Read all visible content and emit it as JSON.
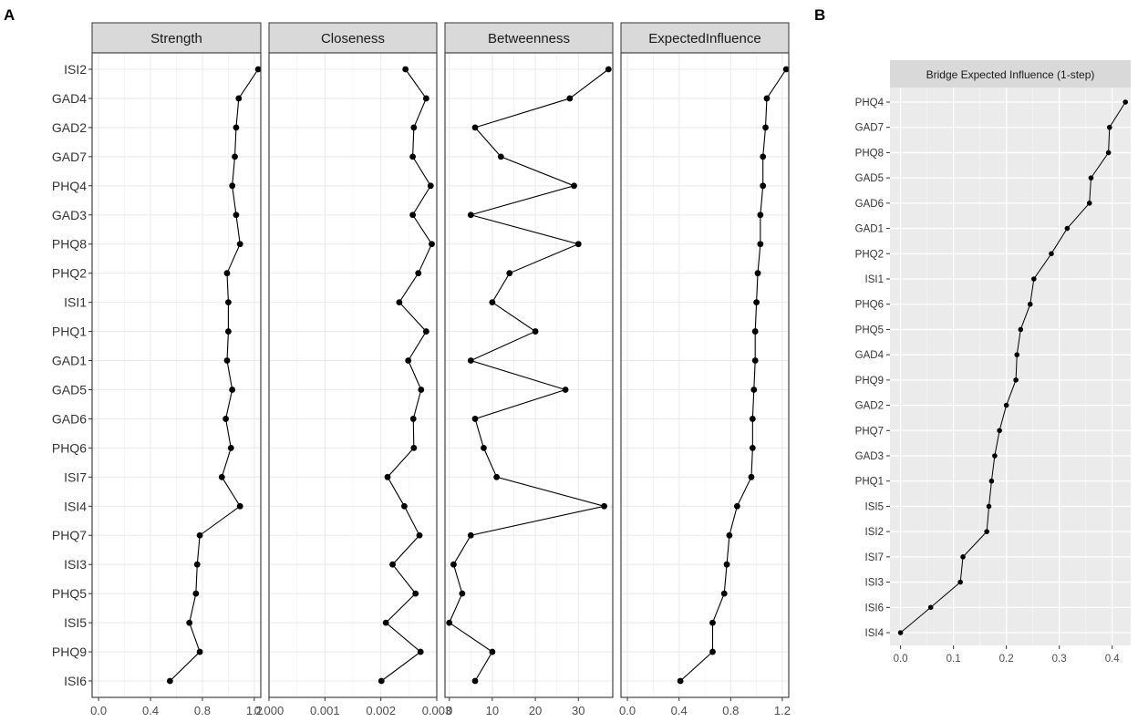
{
  "panel_letters": {
    "a": "A",
    "b": "B"
  },
  "chart_data": [
    {
      "type": "line",
      "panel": "A",
      "categories": [
        "ISI2",
        "GAD4",
        "GAD2",
        "GAD7",
        "PHQ4",
        "GAD3",
        "PHQ8",
        "PHQ2",
        "ISI1",
        "PHQ1",
        "GAD1",
        "GAD5",
        "GAD6",
        "PHQ6",
        "ISI7",
        "ISI4",
        "PHQ7",
        "ISI3",
        "PHQ5",
        "ISI5",
        "PHQ9",
        "ISI6"
      ],
      "facets": [
        {
          "title": "Strength",
          "xlim": [
            -0.05,
            1.25
          ],
          "ticks": [
            0.0,
            0.4,
            0.8,
            1.2
          ],
          "tick_labels": [
            "0.0",
            "0.4",
            "0.8",
            "1.2"
          ],
          "values": [
            1.23,
            1.08,
            1.06,
            1.05,
            1.03,
            1.06,
            1.09,
            0.99,
            1.0,
            1.0,
            0.99,
            1.03,
            0.98,
            1.02,
            0.95,
            1.09,
            0.78,
            0.76,
            0.75,
            0.7,
            0.78,
            0.55
          ]
        },
        {
          "title": "Closeness",
          "xlim": [
            0.0,
            0.003
          ],
          "ticks": [
            0.0,
            0.001,
            0.002,
            0.003
          ],
          "tick_labels": [
            "0.000",
            "0.001",
            "0.002",
            "0.003"
          ],
          "values": [
            0.00244,
            0.00281,
            0.00259,
            0.00257,
            0.00289,
            0.00257,
            0.00291,
            0.00267,
            0.00233,
            0.00281,
            0.00249,
            0.00272,
            0.00258,
            0.00259,
            0.00212,
            0.00242,
            0.00269,
            0.00221,
            0.00262,
            0.00209,
            0.00271,
            0.00201
          ]
        },
        {
          "title": "Betweenness",
          "xlim": [
            -1,
            38
          ],
          "ticks": [
            0,
            10,
            20,
            30
          ],
          "tick_labels": [
            "0",
            "10",
            "20",
            "30"
          ],
          "values": [
            37,
            28,
            6,
            12,
            29,
            5,
            30,
            14,
            10,
            20,
            5,
            27,
            6,
            8,
            11,
            36,
            5,
            1,
            3,
            0,
            10,
            6
          ]
        },
        {
          "title": "ExpectedInfluence",
          "xlim": [
            -0.05,
            1.25
          ],
          "ticks": [
            0.0,
            0.4,
            0.8,
            1.2
          ],
          "tick_labels": [
            "0.0",
            "0.4",
            "0.8",
            "1.2"
          ],
          "values": [
            1.23,
            1.08,
            1.07,
            1.05,
            1.05,
            1.03,
            1.03,
            1.01,
            1.0,
            0.99,
            0.99,
            0.98,
            0.97,
            0.97,
            0.96,
            0.85,
            0.79,
            0.77,
            0.75,
            0.66,
            0.66,
            0.41
          ]
        }
      ]
    },
    {
      "type": "line",
      "panel": "B",
      "title": "Bridge Expected Influence (1-step)",
      "categories": [
        "PHQ4",
        "GAD7",
        "PHQ8",
        "GAD5",
        "GAD6",
        "GAD1",
        "PHQ2",
        "ISI1",
        "PHQ6",
        "PHQ5",
        "GAD4",
        "PHQ9",
        "GAD2",
        "PHQ7",
        "GAD3",
        "PHQ1",
        "ISI5",
        "ISI2",
        "ISI7",
        "ISI3",
        "ISI6",
        "ISI4"
      ],
      "values": [
        0.425,
        0.395,
        0.393,
        0.36,
        0.357,
        0.315,
        0.285,
        0.252,
        0.245,
        0.227,
        0.22,
        0.218,
        0.2,
        0.187,
        0.178,
        0.172,
        0.167,
        0.163,
        0.118,
        0.113,
        0.057,
        0.0
      ],
      "xlim": [
        -0.02,
        0.435
      ],
      "ticks": [
        0.0,
        0.1,
        0.2,
        0.3,
        0.4
      ],
      "tick_labels": [
        "0.0",
        "0.1",
        "0.2",
        "0.3",
        "0.4"
      ],
      "grid": true
    }
  ]
}
